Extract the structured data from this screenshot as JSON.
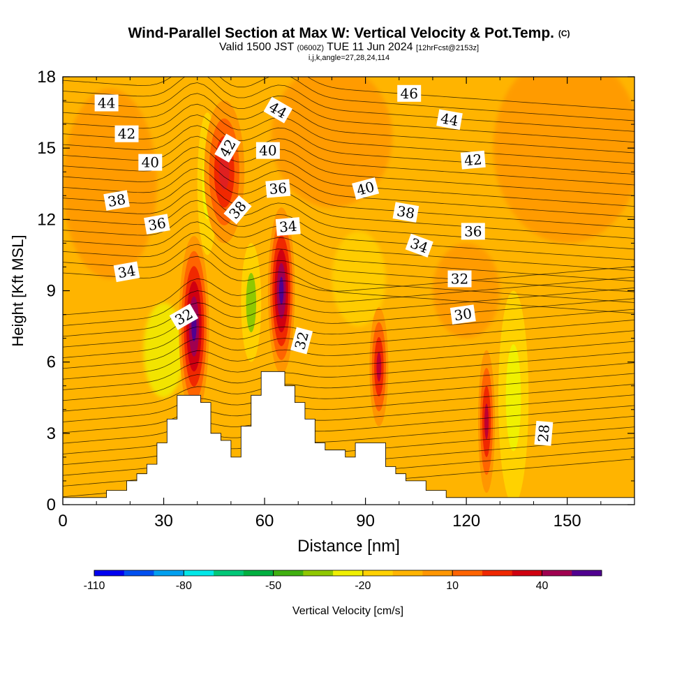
{
  "header": {
    "title": "Wind-Parallel Section at Max W: Vertical Velocity & Pot.Temp.",
    "title_mark": "(C)",
    "valid_prefix": "Valid 1500 JST",
    "valid_utc": "(0600Z)",
    "valid_date": "TUE 11 Jun 2024",
    "forecast": "[12hrFcst@2153z]",
    "indices": "i,j,k,angle=27,28,24,114"
  },
  "chart_data": {
    "type": "heatmap",
    "xlabel": "Distance [nm]",
    "ylabel": "Height [Kft MSL]",
    "xlim": [
      0,
      170
    ],
    "ylim": [
      0,
      18
    ],
    "x_ticks": [
      "0",
      "30",
      "60",
      "90",
      "120",
      "150"
    ],
    "y_ticks": [
      "0",
      "3",
      "6",
      "9",
      "12",
      "15",
      "18"
    ],
    "colorbar": {
      "label": "Vertical Velocity [cm/s]",
      "tick_labels": [
        "-110",
        "-80",
        "-50",
        "-20",
        "10",
        "40"
      ],
      "colors": [
        "#0000f0",
        "#0050f0",
        "#00a0f0",
        "#00e8e8",
        "#00c878",
        "#00b040",
        "#40b010",
        "#90c800",
        "#f0f000",
        "#ffd200",
        "#ffb400",
        "#ff9600",
        "#ff6400",
        "#f02800",
        "#d00010",
        "#a00050",
        "#500090"
      ]
    },
    "background_value_color": "#ffb400",
    "updraft_cores": [
      {
        "x": 39,
        "y": 7.5,
        "w": 4.5,
        "h": 3.8,
        "color": "#500090"
      },
      {
        "x": 65,
        "y": 9.0,
        "w": 4.0,
        "h": 3.5,
        "color": "#500090"
      },
      {
        "x": 48,
        "y": 14.0,
        "w": 6.0,
        "h": 3.0,
        "color": "#e02020"
      },
      {
        "x": 94,
        "y": 5.8,
        "w": 2.8,
        "h": 2.5,
        "color": "#c00030"
      },
      {
        "x": 126,
        "y": 3.5,
        "w": 2.5,
        "h": 3.0,
        "color": "#c00030"
      }
    ],
    "downdraft_cores": [
      {
        "x": 56,
        "y": 8.5,
        "w": 3.0,
        "h": 2.5,
        "color": "#90c800"
      },
      {
        "x": 43,
        "y": 13.5,
        "w": 3.0,
        "h": 3.0,
        "color": "#f0f000"
      },
      {
        "x": 134,
        "y": 4.5,
        "w": 4.5,
        "h": 4.5,
        "color": "#f0f000"
      }
    ],
    "terrain": [
      [
        0,
        0.3
      ],
      [
        13,
        0.3
      ],
      [
        13,
        0.6
      ],
      [
        19,
        0.6
      ],
      [
        19,
        1.0
      ],
      [
        22,
        1.0
      ],
      [
        22,
        1.3
      ],
      [
        25,
        1.3
      ],
      [
        25,
        1.7
      ],
      [
        28,
        1.7
      ],
      [
        28,
        2.6
      ],
      [
        31,
        2.6
      ],
      [
        31,
        3.6
      ],
      [
        34,
        3.6
      ],
      [
        34,
        4.6
      ],
      [
        41,
        4.6
      ],
      [
        41,
        4.3
      ],
      [
        44,
        4.3
      ],
      [
        44,
        3.0
      ],
      [
        47,
        3.0
      ],
      [
        47,
        2.7
      ],
      [
        50,
        2.7
      ],
      [
        50,
        2.0
      ],
      [
        53,
        2.0
      ],
      [
        53,
        3.3
      ],
      [
        56,
        3.3
      ],
      [
        56,
        4.6
      ],
      [
        59,
        4.6
      ],
      [
        59,
        5.6
      ],
      [
        66,
        5.6
      ],
      [
        66,
        5.0
      ],
      [
        69,
        5.0
      ],
      [
        69,
        4.3
      ],
      [
        72,
        4.3
      ],
      [
        72,
        3.6
      ],
      [
        75,
        3.6
      ],
      [
        75,
        2.6
      ],
      [
        78,
        2.6
      ],
      [
        78,
        2.3
      ],
      [
        84,
        2.3
      ],
      [
        84,
        2.0
      ],
      [
        87,
        2.0
      ],
      [
        87,
        2.6
      ],
      [
        96,
        2.6
      ],
      [
        96,
        1.6
      ],
      [
        99,
        1.6
      ],
      [
        99,
        1.3
      ],
      [
        102,
        1.3
      ],
      [
        102,
        1.0
      ],
      [
        108,
        1.0
      ],
      [
        108,
        0.6
      ],
      [
        114,
        0.6
      ],
      [
        114,
        0.3
      ],
      [
        170,
        0.3
      ]
    ],
    "theta_contours": [
      {
        "label": "28",
        "lx": 143,
        "ly": 3.0,
        "rot": -85
      },
      {
        "label": "30",
        "lx": 119,
        "ly": 8.0,
        "rot": -8
      },
      {
        "label": "32",
        "lx": 118,
        "ly": 9.5,
        "rot": 0
      },
      {
        "label": "32",
        "lx": 36,
        "ly": 7.9,
        "rot": -30
      },
      {
        "label": "32",
        "lx": 71,
        "ly": 6.9,
        "rot": -75
      },
      {
        "label": "34",
        "lx": 19,
        "ly": 9.8,
        "rot": -10
      },
      {
        "label": "34",
        "lx": 67,
        "ly": 11.7,
        "rot": -5
      },
      {
        "label": "34",
        "lx": 106,
        "ly": 10.9,
        "rot": 20
      },
      {
        "label": "36",
        "lx": 28,
        "ly": 11.8,
        "rot": -10
      },
      {
        "label": "36",
        "lx": 64,
        "ly": 13.3,
        "rot": -5
      },
      {
        "label": "36",
        "lx": 122,
        "ly": 11.5,
        "rot": 0
      },
      {
        "label": "38",
        "lx": 16,
        "ly": 12.8,
        "rot": -10
      },
      {
        "label": "38",
        "lx": 52,
        "ly": 12.4,
        "rot": -50
      },
      {
        "label": "38",
        "lx": 102,
        "ly": 12.3,
        "rot": 10
      },
      {
        "label": "40",
        "lx": 26,
        "ly": 14.4,
        "rot": 0
      },
      {
        "label": "40",
        "lx": 61,
        "ly": 14.9,
        "rot": 0
      },
      {
        "label": "40",
        "lx": 90,
        "ly": 13.3,
        "rot": -15
      },
      {
        "label": "42",
        "lx": 19,
        "ly": 15.6,
        "rot": 0
      },
      {
        "label": "42",
        "lx": 49,
        "ly": 15.0,
        "rot": -60
      },
      {
        "label": "42",
        "lx": 122,
        "ly": 14.5,
        "rot": -5
      },
      {
        "label": "44",
        "lx": 13,
        "ly": 16.9,
        "rot": 0
      },
      {
        "label": "44",
        "lx": 64,
        "ly": 16.6,
        "rot": 30
      },
      {
        "label": "44",
        "lx": 115,
        "ly": 16.2,
        "rot": 10
      },
      {
        "label": "46",
        "lx": 103,
        "ly": 17.3,
        "rot": 0
      }
    ]
  }
}
